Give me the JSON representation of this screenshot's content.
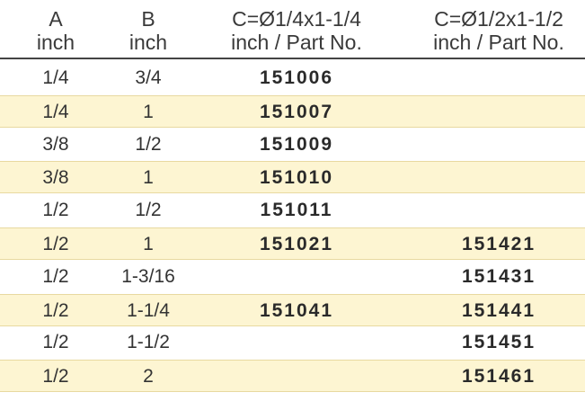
{
  "table": {
    "header": [
      [
        "A",
        "inch"
      ],
      [
        "B",
        "inch"
      ],
      [
        "C=Ø1/4x1-1/4",
        "inch / Part No."
      ],
      [
        "C=Ø1/2x1-1/2",
        "inch / Part No."
      ]
    ],
    "rows": [
      [
        "1/4",
        "3/4",
        "151006",
        null
      ],
      [
        "1/4",
        "1",
        "151007",
        null
      ],
      [
        "3/8",
        "1/2",
        "151009",
        null
      ],
      [
        "3/8",
        "1",
        "151010",
        null
      ],
      [
        "1/2",
        "1/2",
        "151011",
        null
      ],
      [
        "1/2",
        "1",
        "151021",
        "151421"
      ],
      [
        "1/2",
        "1-3/16",
        null,
        "151431"
      ],
      [
        "1/2",
        "1-1/4",
        "151041",
        "151441"
      ],
      [
        "1/2",
        "1-1/2",
        null,
        "151451"
      ],
      [
        "1/2",
        "2",
        null,
        "151461"
      ]
    ]
  }
}
